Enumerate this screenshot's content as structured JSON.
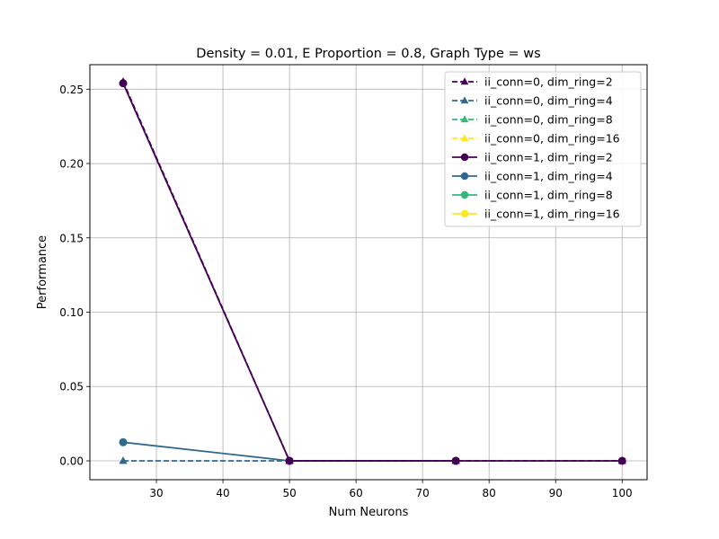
{
  "chart_data": {
    "type": "line",
    "title": "Density = 0.01, E Proportion = 0.8, Graph Type = ws",
    "xlabel": "Num Neurons",
    "ylabel": "Performance",
    "xlim": [
      20.0,
      103.75
    ],
    "ylim": [
      -0.0127,
      0.2665
    ],
    "xticks": [
      30,
      40,
      50,
      60,
      70,
      80,
      90,
      100
    ],
    "yticks": [
      0.0,
      0.05,
      0.1,
      0.15,
      0.2,
      0.25
    ],
    "xtick_labels": [
      "30",
      "40",
      "50",
      "60",
      "70",
      "80",
      "90",
      "100"
    ],
    "ytick_labels": [
      "0.00",
      "0.05",
      "0.10",
      "0.15",
      "0.20",
      "0.25"
    ],
    "grid": true,
    "legend_position": "top-right",
    "series": [
      {
        "name": "ii_conn=0, dim_ring=2",
        "color": "#440154",
        "linestyle": "dashed",
        "marker": "triangle",
        "x": [
          25,
          50,
          75,
          100
        ],
        "y": [
          0.255,
          0.0,
          0.0,
          0.0
        ]
      },
      {
        "name": "ii_conn=0, dim_ring=4",
        "color": "#31688e",
        "linestyle": "dashed",
        "marker": "triangle",
        "x": [
          25,
          50,
          75
        ],
        "y": [
          0.0,
          0.0,
          0.0
        ]
      },
      {
        "name": "ii_conn=0, dim_ring=8",
        "color": "#35b779",
        "linestyle": "dashed",
        "marker": "triangle",
        "x": [],
        "y": []
      },
      {
        "name": "ii_conn=0, dim_ring=16",
        "color": "#fde725",
        "linestyle": "dashed",
        "marker": "triangle",
        "x": [],
        "y": []
      },
      {
        "name": "ii_conn=1, dim_ring=2",
        "color": "#440154",
        "linestyle": "solid",
        "marker": "circle",
        "x": [
          25,
          50,
          75,
          100
        ],
        "y": [
          0.254,
          0.0,
          0.0,
          0.0
        ]
      },
      {
        "name": "ii_conn=1, dim_ring=4",
        "color": "#31688e",
        "linestyle": "solid",
        "marker": "circle",
        "x": [
          25,
          50,
          75
        ],
        "y": [
          0.0125,
          0.0,
          0.0
        ]
      },
      {
        "name": "ii_conn=1, dim_ring=8",
        "color": "#35b779",
        "linestyle": "solid",
        "marker": "circle",
        "x": [],
        "y": []
      },
      {
        "name": "ii_conn=1, dim_ring=16",
        "color": "#fde725",
        "linestyle": "solid",
        "marker": "circle",
        "x": [],
        "y": []
      }
    ]
  }
}
